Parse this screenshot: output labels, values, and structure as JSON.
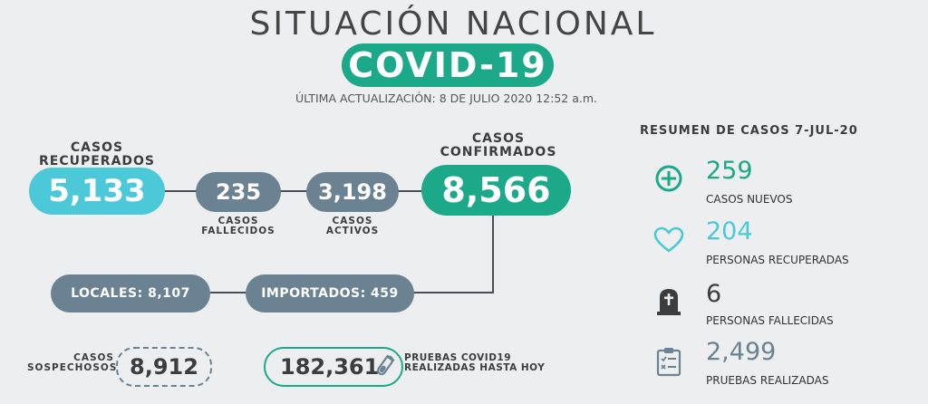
{
  "header": {
    "title": "SITUACIÓN NACIONAL",
    "badge": "COVID-19",
    "update": "ÚLTIMA ACTUALIZACIÓN: 8 DE JULIO 2020 12:52 a.m."
  },
  "flow": {
    "recuperados": {
      "label_l1": "CASOS",
      "label_l2": "RECUPERADOS",
      "value": "5,133"
    },
    "fallecidos": {
      "value": "235",
      "label_l1": "CASOS",
      "label_l2": "FALLECIDOS"
    },
    "activos": {
      "value": "3,198",
      "label_l1": "CASOS",
      "label_l2": "ACTIVOS"
    },
    "confirmados": {
      "label_l1": "CASOS",
      "label_l2": "CONFIRMADOS",
      "value": "8,566"
    },
    "locales": "LOCALES: 8,107",
    "importados": "IMPORTADOS: 459"
  },
  "bottom": {
    "sospechosos": {
      "label_l1": "CASOS",
      "label_l2": "SOSPECHOSOS",
      "value": "8,912"
    },
    "pruebas": {
      "value": "182,361",
      "label_l1": "PRUEBAS COVID19",
      "label_l2": "REALIZADAS HASTA HOY"
    }
  },
  "summary": {
    "title": "RESUMEN DE CASOS 7-JUL-20",
    "items": [
      {
        "value": "259",
        "label": "CASOS NUEVOS",
        "icon": "plus-circle-icon",
        "color": "#1ba98a"
      },
      {
        "value": "204",
        "label": "PERSONAS RECUPERADAS",
        "icon": "heart-icon",
        "color": "#4cc9d8"
      },
      {
        "value": "6",
        "label": "PERSONAS FALLECIDAS",
        "icon": "tombstone-icon",
        "color": "#3d3d3d"
      },
      {
        "value": "2,499",
        "label": "PRUEBAS REALIZADAS",
        "icon": "clipboard-icon",
        "color": "#6b8293"
      }
    ]
  },
  "colors": {
    "teal": "#1ba98a",
    "cyan": "#4cc9d8",
    "slate": "#6b8293",
    "background": "#eceeef"
  }
}
